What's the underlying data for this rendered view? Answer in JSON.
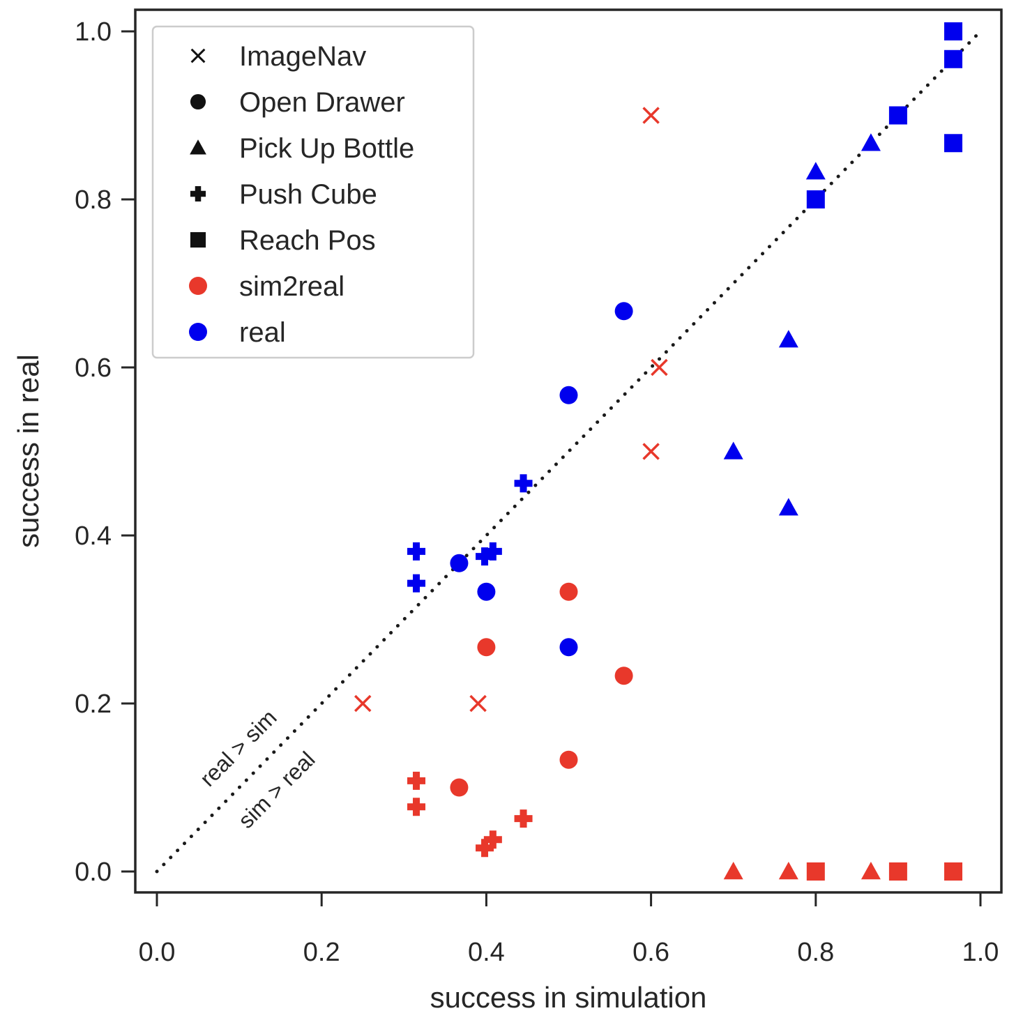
{
  "chart_data": {
    "type": "scatter",
    "title": "",
    "xlabel": "success in simulation",
    "ylabel": "success in real",
    "xlim": [
      -0.025,
      1.025
    ],
    "ylim": [
      -0.025,
      1.025
    ],
    "xticks": [
      "0.0",
      "0.2",
      "0.4",
      "0.6",
      "0.8",
      "1.0"
    ],
    "yticks": [
      "0.0",
      "0.2",
      "0.4",
      "0.6",
      "0.8",
      "1.0"
    ],
    "grid": false,
    "legend_position": "top-left",
    "legend": {
      "markers": [
        {
          "label": "ImageNav",
          "marker": "x"
        },
        {
          "label": "Open Drawer",
          "marker": "circle"
        },
        {
          "label": "Pick Up Bottle",
          "marker": "triangle"
        },
        {
          "label": "Push Cube",
          "marker": "plus"
        },
        {
          "label": "Reach Pos",
          "marker": "square"
        }
      ],
      "colors": [
        {
          "label": "sim2real",
          "color": "#e8382b"
        },
        {
          "label": "real",
          "color": "#0000ee"
        }
      ]
    },
    "diagonal": {
      "style": "dotted",
      "from": [
        0,
        0
      ],
      "to": [
        1,
        1
      ]
    },
    "annotations": [
      "real > sim",
      "sim > real"
    ],
    "series": [
      {
        "name": "sim2real",
        "color": "#e8382b",
        "points": [
          {
            "task": "ImageNav",
            "marker": "x",
            "x": 0.6,
            "y": 0.9
          },
          {
            "task": "ImageNav",
            "marker": "x",
            "x": 0.61,
            "y": 0.6
          },
          {
            "task": "ImageNav",
            "marker": "x",
            "x": 0.6,
            "y": 0.5
          },
          {
            "task": "ImageNav",
            "marker": "x",
            "x": 0.25,
            "y": 0.2
          },
          {
            "task": "ImageNav",
            "marker": "x",
            "x": 0.39,
            "y": 0.2
          },
          {
            "task": "Open Drawer",
            "marker": "circle",
            "x": 0.5,
            "y": 0.333
          },
          {
            "task": "Open Drawer",
            "marker": "circle",
            "x": 0.4,
            "y": 0.267
          },
          {
            "task": "Open Drawer",
            "marker": "circle",
            "x": 0.567,
            "y": 0.233
          },
          {
            "task": "Open Drawer",
            "marker": "circle",
            "x": 0.5,
            "y": 0.133
          },
          {
            "task": "Open Drawer",
            "marker": "circle",
            "x": 0.367,
            "y": 0.1
          },
          {
            "task": "Push Cube",
            "marker": "plus",
            "x": 0.315,
            "y": 0.108
          },
          {
            "task": "Push Cube",
            "marker": "plus",
            "x": 0.315,
            "y": 0.077
          },
          {
            "task": "Push Cube",
            "marker": "plus",
            "x": 0.445,
            "y": 0.063
          },
          {
            "task": "Push Cube",
            "marker": "plus",
            "x": 0.408,
            "y": 0.038
          },
          {
            "task": "Push Cube",
            "marker": "plus",
            "x": 0.398,
            "y": 0.028
          },
          {
            "task": "Pick Up Bottle",
            "marker": "triangle",
            "x": 0.7,
            "y": 0.0
          },
          {
            "task": "Pick Up Bottle",
            "marker": "triangle",
            "x": 0.767,
            "y": 0.0
          },
          {
            "task": "Pick Up Bottle",
            "marker": "triangle",
            "x": 0.867,
            "y": 0.0
          },
          {
            "task": "Reach Pos",
            "marker": "square",
            "x": 0.8,
            "y": 0.0
          },
          {
            "task": "Reach Pos",
            "marker": "square",
            "x": 0.9,
            "y": 0.0
          },
          {
            "task": "Reach Pos",
            "marker": "square",
            "x": 0.967,
            "y": 0.0
          }
        ]
      },
      {
        "name": "real",
        "color": "#0000ee",
        "points": [
          {
            "task": "Open Drawer",
            "marker": "circle",
            "x": 0.567,
            "y": 0.667
          },
          {
            "task": "Open Drawer",
            "marker": "circle",
            "x": 0.5,
            "y": 0.567
          },
          {
            "task": "Open Drawer",
            "marker": "circle",
            "x": 0.367,
            "y": 0.367
          },
          {
            "task": "Open Drawer",
            "marker": "circle",
            "x": 0.4,
            "y": 0.333
          },
          {
            "task": "Open Drawer",
            "marker": "circle",
            "x": 0.5,
            "y": 0.267
          },
          {
            "task": "Push Cube",
            "marker": "plus",
            "x": 0.445,
            "y": 0.462
          },
          {
            "task": "Push Cube",
            "marker": "plus",
            "x": 0.315,
            "y": 0.381
          },
          {
            "task": "Push Cube",
            "marker": "plus",
            "x": 0.408,
            "y": 0.381
          },
          {
            "task": "Push Cube",
            "marker": "plus",
            "x": 0.398,
            "y": 0.375
          },
          {
            "task": "Push Cube",
            "marker": "plus",
            "x": 0.315,
            "y": 0.343
          },
          {
            "task": "Pick Up Bottle",
            "marker": "triangle",
            "x": 0.8,
            "y": 0.833
          },
          {
            "task": "Pick Up Bottle",
            "marker": "triangle",
            "x": 0.867,
            "y": 0.867
          },
          {
            "task": "Pick Up Bottle",
            "marker": "triangle",
            "x": 0.767,
            "y": 0.633
          },
          {
            "task": "Pick Up Bottle",
            "marker": "triangle",
            "x": 0.7,
            "y": 0.5
          },
          {
            "task": "Pick Up Bottle",
            "marker": "triangle",
            "x": 0.767,
            "y": 0.433
          },
          {
            "task": "Reach Pos",
            "marker": "square",
            "x": 0.967,
            "y": 1.0
          },
          {
            "task": "Reach Pos",
            "marker": "square",
            "x": 0.967,
            "y": 0.967
          },
          {
            "task": "Reach Pos",
            "marker": "square",
            "x": 0.9,
            "y": 0.9
          },
          {
            "task": "Reach Pos",
            "marker": "square",
            "x": 0.967,
            "y": 0.867
          },
          {
            "task": "Reach Pos",
            "marker": "square",
            "x": 0.8,
            "y": 0.8
          }
        ]
      }
    ]
  }
}
